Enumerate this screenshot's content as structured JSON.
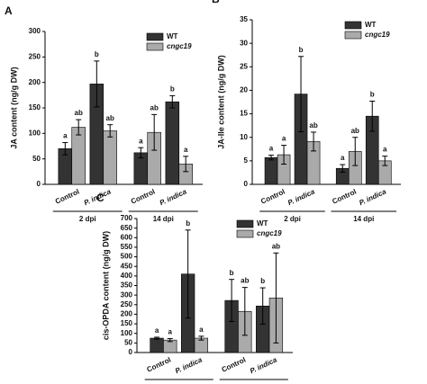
{
  "chart_data": [
    {
      "type": "bar",
      "panel": "A",
      "ylabel": "JA content (ng/g DW)",
      "categories": [
        "Control",
        "P. indica",
        "Control",
        "P. indica"
      ],
      "groups": [
        "2 dpi",
        "14 dpi"
      ],
      "ylim": [
        0,
        300
      ],
      "yticks": [
        0,
        50,
        100,
        150,
        200,
        250,
        300
      ],
      "legend": "upper right",
      "series": [
        {
          "name": "WT",
          "color": "#333333",
          "values": [
            70,
            197,
            62,
            162
          ],
          "errors": [
            12,
            45,
            10,
            12
          ],
          "labels": [
            "a",
            "b",
            "a",
            "b"
          ]
        },
        {
          "name": "cngc19",
          "color": "#aaaaaa",
          "values": [
            112,
            105,
            102,
            40
          ],
          "errors": [
            15,
            12,
            35,
            15
          ],
          "labels": [
            "ab",
            "ab",
            "ab",
            "a"
          ]
        }
      ]
    },
    {
      "type": "bar",
      "panel": "B",
      "ylabel": "JA-Ile content (ng/g DW)",
      "categories": [
        "Control",
        "P. indica",
        "Control",
        "P. indica"
      ],
      "groups": [
        "2 dpi",
        "14 dpi"
      ],
      "ylim": [
        0,
        35
      ],
      "yticks": [
        0,
        5,
        10,
        15,
        20,
        25,
        30,
        35
      ],
      "legend": "upper right",
      "series": [
        {
          "name": "WT",
          "color": "#333333",
          "values": [
            5.7,
            19.2,
            3.4,
            14.5
          ],
          "errors": [
            0.5,
            8,
            0.8,
            3.2
          ],
          "labels": [
            "a",
            "b",
            "a",
            "b"
          ]
        },
        {
          "name": "cngc19",
          "color": "#aaaaaa",
          "values": [
            6.3,
            9.1,
            7,
            5
          ],
          "errors": [
            2,
            2,
            3,
            1
          ],
          "labels": [
            "a",
            "ab",
            "ab",
            "a"
          ]
        }
      ]
    },
    {
      "type": "bar",
      "panel": "C",
      "ylabel": "cis-OPDA content (ng/g DW)",
      "categories": [
        "Control",
        "P. indica",
        "Control",
        "P. indica"
      ],
      "groups": [
        "2 dpi",
        "14 dpi"
      ],
      "ylim": [
        0,
        700
      ],
      "yticks": [
        0,
        50,
        100,
        150,
        200,
        250,
        300,
        350,
        400,
        450,
        500,
        550,
        600,
        650,
        700
      ],
      "legend": "upper right",
      "series": [
        {
          "name": "WT",
          "color": "#333333",
          "values": [
            75,
            410,
            272,
            243
          ],
          "errors": [
            5,
            230,
            110,
            95
          ],
          "labels": [
            "a",
            "b",
            "b",
            "b"
          ]
        },
        {
          "name": "cngc19",
          "color": "#aaaaaa",
          "values": [
            65,
            75,
            215,
            285
          ],
          "errors": [
            8,
            10,
            125,
            235
          ],
          "labels": [
            "a",
            "a",
            "ab",
            "ab"
          ]
        }
      ]
    }
  ]
}
